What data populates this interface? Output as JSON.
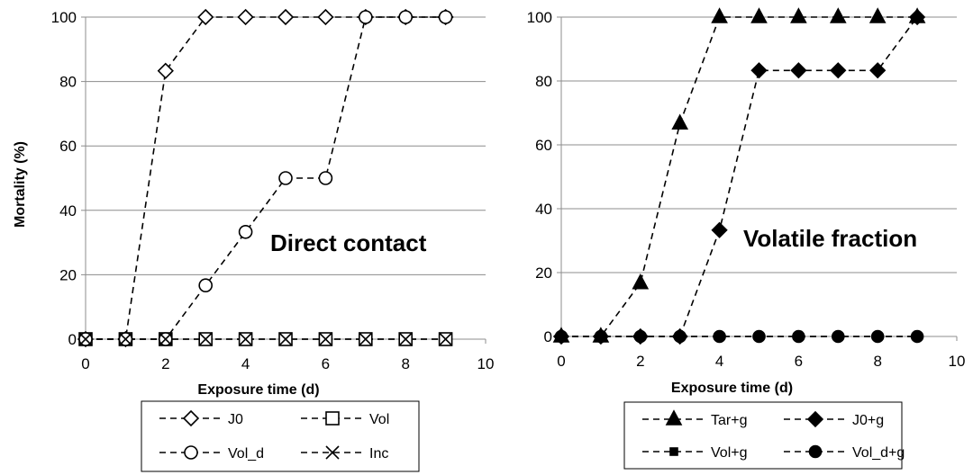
{
  "chart_data": [
    {
      "type": "line",
      "title": "",
      "annotation": "Direct contact",
      "xlabel": "Exposure time (d)",
      "ylabel": "Mortality (%)",
      "xlim": [
        0,
        10
      ],
      "ylim": [
        0,
        100
      ],
      "xticks": [
        "0",
        "2",
        "4",
        "6",
        "8",
        "10"
      ],
      "yticks": [
        "0",
        "20",
        "40",
        "60",
        "80",
        "100"
      ],
      "grid": "horizontal",
      "legend_position": "bottom",
      "line_color": "#000000",
      "series": [
        {
          "name": "J0",
          "marker": "diamond-open",
          "x": [
            0,
            1,
            2,
            3,
            4,
            5,
            6,
            7,
            8,
            9
          ],
          "y": [
            0,
            0,
            83.3,
            100,
            100,
            100,
            100,
            100,
            100,
            100
          ]
        },
        {
          "name": "Vol",
          "marker": "square-open",
          "x": [
            0,
            1,
            2,
            3,
            4,
            5,
            6,
            7,
            8,
            9
          ],
          "y": [
            0,
            0,
            0,
            0,
            0,
            0,
            0,
            0,
            0,
            0
          ]
        },
        {
          "name": "Vol_d",
          "marker": "circle-open",
          "x": [
            0,
            1,
            2,
            3,
            4,
            5,
            6,
            7,
            8,
            9
          ],
          "y": [
            0,
            0,
            0,
            16.7,
            33.3,
            50,
            50,
            100,
            100,
            100
          ]
        },
        {
          "name": "Inc",
          "marker": "x",
          "x": [
            0,
            1,
            2,
            3,
            4,
            5,
            6,
            7,
            8,
            9
          ],
          "y": [
            0,
            0,
            0,
            0,
            0,
            0,
            0,
            0,
            0,
            0
          ]
        }
      ]
    },
    {
      "type": "line",
      "title": "",
      "annotation": "Volatile fraction",
      "xlabel": "Exposure time (d)",
      "ylabel": "",
      "xlim": [
        0,
        10
      ],
      "ylim": [
        0,
        100
      ],
      "xticks": [
        "0",
        "2",
        "4",
        "6",
        "8",
        "10"
      ],
      "yticks": [
        "0",
        "20",
        "40",
        "60",
        "80",
        "100"
      ],
      "grid": "horizontal",
      "legend_position": "bottom",
      "line_color": "#000000",
      "series": [
        {
          "name": "Tar+g",
          "marker": "triangle-filled",
          "x": [
            0,
            1,
            2,
            3,
            4,
            5,
            6,
            7,
            8,
            9
          ],
          "y": [
            0,
            0,
            16.7,
            66.7,
            100,
            100,
            100,
            100,
            100,
            100
          ]
        },
        {
          "name": "J0+g",
          "marker": "diamond-filled",
          "x": [
            0,
            1,
            2,
            3,
            4,
            5,
            6,
            7,
            8,
            9
          ],
          "y": [
            0,
            0,
            0,
            0,
            33.3,
            83.3,
            83.3,
            83.3,
            83.3,
            100
          ]
        },
        {
          "name": "Vol+g",
          "marker": "square-filled-small",
          "x": [
            0,
            1,
            2,
            3,
            4,
            5,
            6,
            7,
            8,
            9
          ],
          "y": [
            0,
            0,
            0,
            0,
            0,
            0,
            0,
            0,
            0,
            0
          ]
        },
        {
          "name": "Vol_d+g",
          "marker": "circle-filled",
          "x": [
            0,
            1,
            2,
            3,
            4,
            5,
            6,
            7,
            8,
            9
          ],
          "y": [
            0,
            0,
            0,
            0,
            0,
            0,
            0,
            0,
            0,
            0
          ]
        }
      ]
    }
  ]
}
